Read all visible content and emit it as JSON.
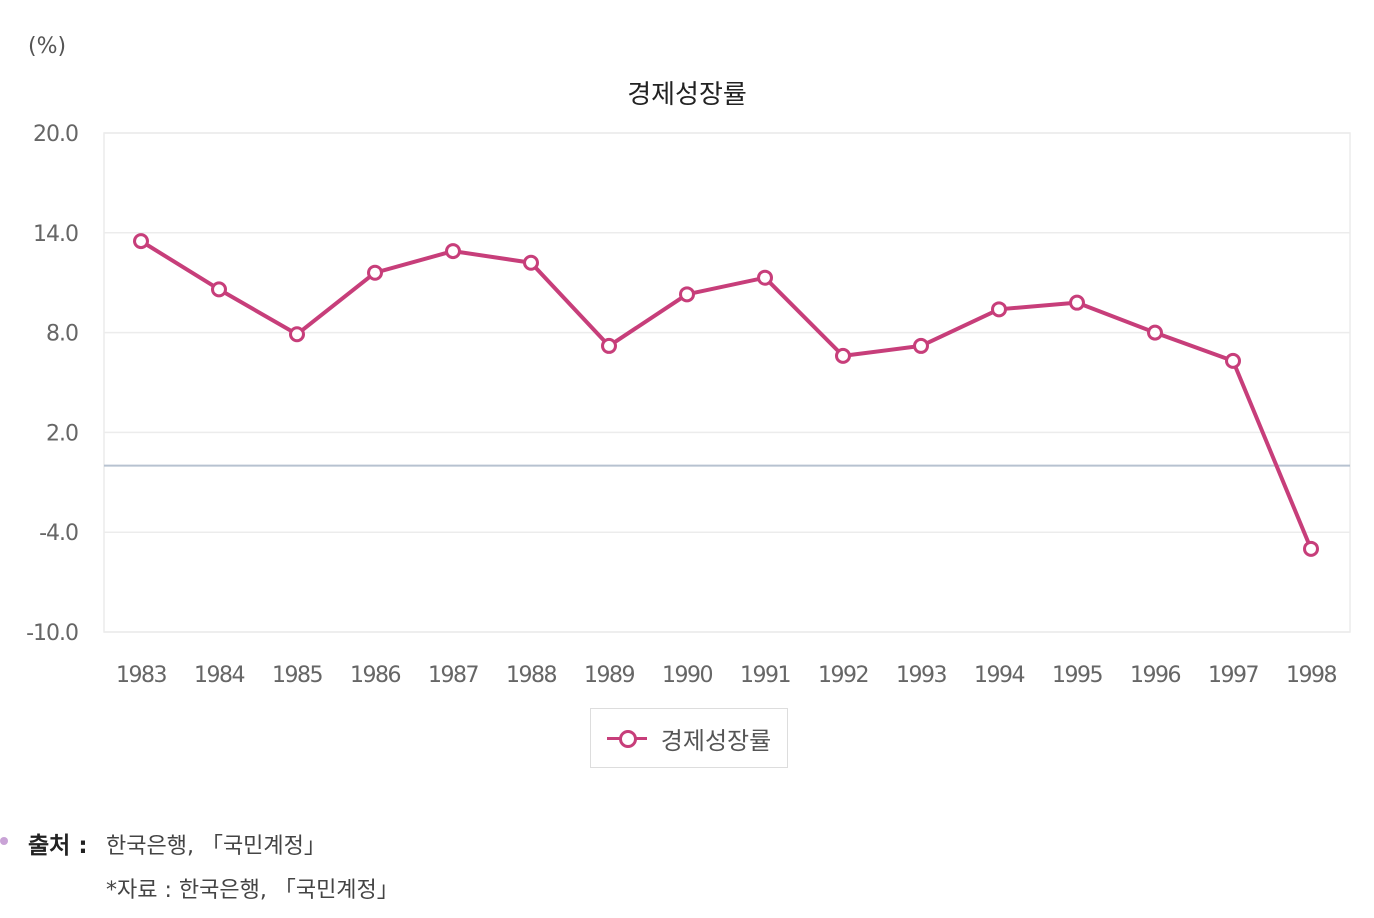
{
  "chart_data": {
    "type": "line",
    "title": "경제성장률",
    "unit_label": "(%)",
    "categories": [
      "1983",
      "1984",
      "1985",
      "1986",
      "1987",
      "1988",
      "1989",
      "1990",
      "1991",
      "1992",
      "1993",
      "1994",
      "1995",
      "1996",
      "1997",
      "1998"
    ],
    "series": [
      {
        "name": "경제성장률",
        "color": "#c73e7a",
        "values": [
          13.5,
          10.6,
          7.9,
          11.6,
          12.9,
          12.2,
          7.2,
          10.3,
          11.3,
          6.6,
          7.2,
          9.4,
          9.8,
          8.0,
          6.3,
          -5.0
        ]
      }
    ],
    "y_ticks": [
      "20.0",
      "14.0",
      "8.0",
      "2.0",
      "-4.0",
      "-10.0"
    ],
    "ylim": [
      -10,
      20
    ],
    "zero_line": true,
    "grid": true,
    "legend_position": "bottom"
  },
  "source": {
    "label": "출처 :",
    "text": "한국은행, 「국민계정」",
    "note": "*자료 : 한국은행, 「국민계정」"
  }
}
